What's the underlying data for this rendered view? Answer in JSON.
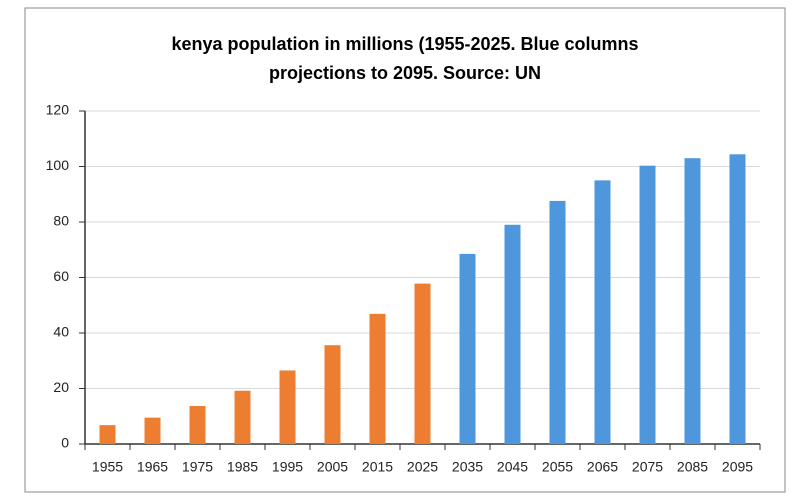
{
  "chart_data": {
    "type": "bar",
    "title": "kenya population in millions (1955-2025. Blue columns projections to 2095. Source: UN",
    "categories": [
      "1955",
      "1965",
      "1975",
      "1985",
      "1995",
      "2005",
      "2015",
      "2025",
      "2035",
      "2045",
      "2055",
      "2065",
      "2075",
      "2085",
      "2095"
    ],
    "values": [
      6.8,
      9.5,
      13.7,
      19.2,
      26.5,
      35.6,
      46.9,
      57.8,
      68.5,
      79,
      87.6,
      95,
      100.3,
      103,
      104.4
    ],
    "colors": [
      "#ed7d31",
      "#ed7d31",
      "#ed7d31",
      "#ed7d31",
      "#ed7d31",
      "#ed7d31",
      "#ed7d31",
      "#ed7d31",
      "#4f97dc",
      "#4f97dc",
      "#4f97dc",
      "#4f97dc",
      "#4f97dc",
      "#4f97dc",
      "#4f97dc"
    ],
    "ylim": [
      0,
      120
    ],
    "yticks": [
      0,
      20,
      40,
      60,
      80,
      100,
      120
    ],
    "grid": true
  }
}
